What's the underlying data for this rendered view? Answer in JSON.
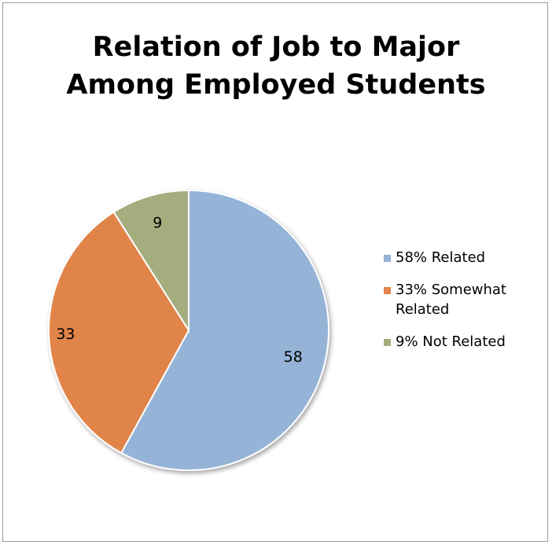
{
  "chart_data": {
    "type": "pie",
    "title_lines": [
      "Relation of Job to Major",
      "Among Employed Students"
    ],
    "categories": [
      "58% Related",
      "33% Somewhat Related",
      "9% Not Related"
    ],
    "values": [
      58,
      33,
      9
    ],
    "data_labels": [
      "58",
      "33",
      "9"
    ],
    "colors": [
      "#95b3d7",
      "#e0844a",
      "#a4ad7e"
    ],
    "legend_position": "right"
  }
}
